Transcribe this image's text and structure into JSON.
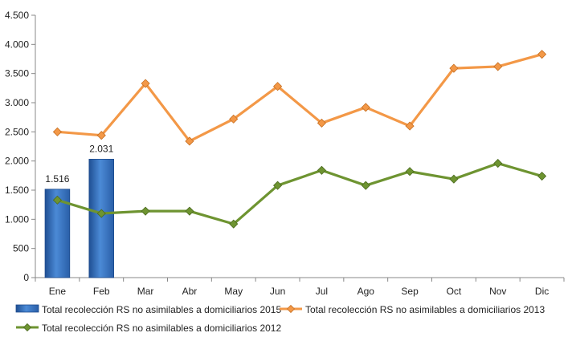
{
  "chart_data": {
    "type": "bar",
    "categories": [
      "Ene",
      "Feb",
      "Mar",
      "Abr",
      "May",
      "Jun",
      "Jul",
      "Ago",
      "Sep",
      "Oct",
      "Nov",
      "Dic"
    ],
    "ylim": [
      0,
      4500
    ],
    "yticks": [
      0,
      500,
      1000,
      1500,
      2000,
      2500,
      3000,
      3500,
      4000,
      4500
    ],
    "ytick_labels": [
      "0",
      "500",
      "1.000",
      "1.500",
      "2.000",
      "2.500",
      "3.000",
      "3.500",
      "4.000",
      "4.500"
    ],
    "grid": false,
    "legend_position": "bottom",
    "series": [
      {
        "name": "Total recolección RS no asimilables a domiciliarios 2015",
        "type": "bar",
        "color": "#3a78c2",
        "values": [
          1516,
          2031,
          null,
          null,
          null,
          null,
          null,
          null,
          null,
          null,
          null,
          null
        ],
        "data_labels": [
          "1.516",
          "2.031",
          null,
          null,
          null,
          null,
          null,
          null,
          null,
          null,
          null,
          null
        ]
      },
      {
        "name": "Total recolección RS no asimilables a domiciliarios 2013",
        "type": "line",
        "color": "#f39847",
        "values": [
          2500,
          2440,
          3330,
          2340,
          2720,
          3280,
          2650,
          2920,
          2600,
          3590,
          3620,
          3830
        ]
      },
      {
        "name": "Total recolección RS no asimilables a domiciliarios 2012",
        "type": "line",
        "color": "#6e9431",
        "values": [
          1330,
          1100,
          1140,
          1140,
          920,
          1580,
          1840,
          1580,
          1820,
          1690,
          1960,
          1740
        ]
      }
    ]
  }
}
